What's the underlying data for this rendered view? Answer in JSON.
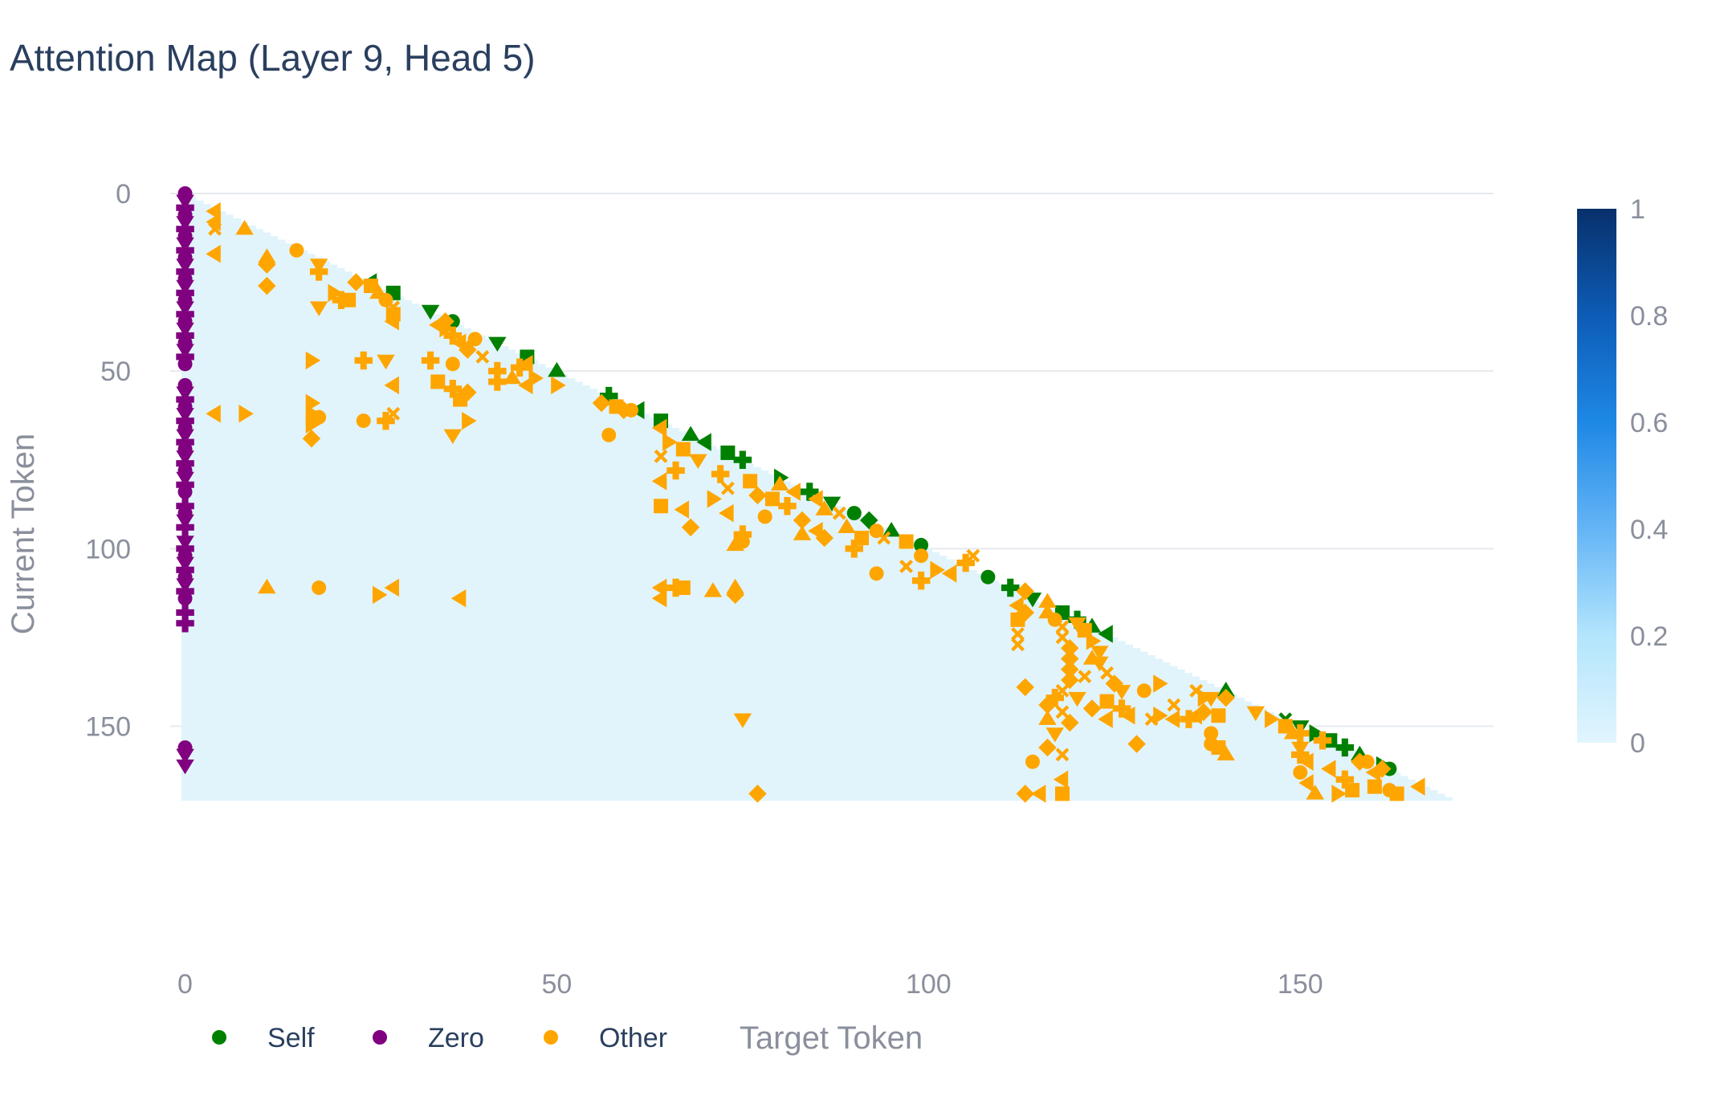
{
  "chart_data": {
    "type": "heatmap",
    "title": "Attention Map (Layer 9, Head 5)",
    "xlabel": "Target Token",
    "ylabel": "Current Token",
    "n_tokens": 171,
    "xlim": [
      -2,
      176
    ],
    "ylim": [
      0,
      170
    ],
    "x_ticks": [
      0,
      50,
      100,
      150
    ],
    "y_ticks": [
      0,
      50,
      100,
      150
    ],
    "grid": true,
    "colorscale": {
      "min": 0,
      "max": 1,
      "ticks": [
        "1",
        "0.8",
        "0.6",
        "0.4",
        "0.2",
        "0"
      ],
      "colors": [
        "#e1f5fe",
        "#b3e5fc",
        "#64b5f6",
        "#1e88e5",
        "#0d5cb6",
        "#08306b"
      ]
    },
    "legend": {
      "placement": "bottom-left",
      "entries": [
        {
          "name": "Self",
          "color": "#008000"
        },
        {
          "name": "Zero",
          "color": "#800080"
        },
        {
          "name": "Other",
          "color": "#ffa500"
        }
      ]
    },
    "series": [
      {
        "name": "Zero",
        "color": "#800080",
        "points": [
          [
            0,
            0
          ],
          [
            0,
            2
          ],
          [
            0,
            4
          ],
          [
            0,
            6
          ],
          [
            0,
            8
          ],
          [
            0,
            10
          ],
          [
            0,
            12
          ],
          [
            0,
            14
          ],
          [
            0,
            16
          ],
          [
            0,
            18
          ],
          [
            0,
            20
          ],
          [
            0,
            22
          ],
          [
            0,
            24
          ],
          [
            0,
            26
          ],
          [
            0,
            28
          ],
          [
            0,
            30
          ],
          [
            0,
            32
          ],
          [
            0,
            34
          ],
          [
            0,
            36
          ],
          [
            0,
            38
          ],
          [
            0,
            40
          ],
          [
            0,
            42
          ],
          [
            0,
            44
          ],
          [
            0,
            46
          ],
          [
            0,
            48
          ],
          [
            0,
            54
          ],
          [
            0,
            56
          ],
          [
            0,
            58
          ],
          [
            0,
            60
          ],
          [
            0,
            62
          ],
          [
            0,
            64
          ],
          [
            0,
            66
          ],
          [
            0,
            68
          ],
          [
            0,
            70
          ],
          [
            0,
            72
          ],
          [
            0,
            74
          ],
          [
            0,
            76
          ],
          [
            0,
            78
          ],
          [
            0,
            80
          ],
          [
            0,
            82
          ],
          [
            0,
            84
          ],
          [
            0,
            88
          ],
          [
            0,
            90
          ],
          [
            0,
            92
          ],
          [
            0,
            94
          ],
          [
            0,
            98
          ],
          [
            0,
            100
          ],
          [
            0,
            102
          ],
          [
            0,
            104
          ],
          [
            0,
            106
          ],
          [
            0,
            108
          ],
          [
            0,
            110
          ],
          [
            0,
            112
          ],
          [
            0,
            114
          ],
          [
            0,
            118
          ],
          [
            0,
            121
          ],
          [
            0,
            156
          ],
          [
            0,
            158
          ],
          [
            0,
            161
          ]
        ]
      },
      {
        "name": "Self",
        "color": "#008000",
        "points": [
          [
            25,
            25
          ],
          [
            28,
            28
          ],
          [
            33,
            33
          ],
          [
            36,
            36
          ],
          [
            42,
            42
          ],
          [
            46,
            46
          ],
          [
            50,
            50
          ],
          [
            57,
            57
          ],
          [
            61,
            61
          ],
          [
            64,
            64
          ],
          [
            68,
            68
          ],
          [
            70,
            70
          ],
          [
            73,
            73
          ],
          [
            75,
            75
          ],
          [
            80,
            80
          ],
          [
            84,
            84
          ],
          [
            87,
            87
          ],
          [
            90,
            90
          ],
          [
            92,
            92
          ],
          [
            95,
            95
          ],
          [
            99,
            99
          ],
          [
            108,
            108
          ],
          [
            111,
            111
          ],
          [
            114,
            114
          ],
          [
            118,
            118
          ],
          [
            120,
            120
          ],
          [
            122,
            122
          ],
          [
            124,
            124
          ],
          [
            140,
            140
          ],
          [
            148,
            148
          ],
          [
            150,
            150
          ],
          [
            152,
            152
          ],
          [
            154,
            154
          ],
          [
            156,
            156
          ],
          [
            158,
            158
          ],
          [
            161,
            161
          ],
          [
            162,
            162
          ]
        ]
      },
      {
        "name": "Other",
        "color": "#ffa500",
        "points": [
          [
            4,
            5
          ],
          [
            4,
            8
          ],
          [
            4,
            10
          ],
          [
            4,
            17
          ],
          [
            8,
            10
          ],
          [
            11,
            18
          ],
          [
            11,
            20
          ],
          [
            11,
            26
          ],
          [
            15,
            16
          ],
          [
            18,
            20
          ],
          [
            18,
            22
          ],
          [
            18,
            32
          ],
          [
            20,
            28
          ],
          [
            21,
            30
          ],
          [
            23,
            25
          ],
          [
            22,
            30
          ],
          [
            25,
            26
          ],
          [
            26,
            28
          ],
          [
            27,
            30
          ],
          [
            28,
            32
          ],
          [
            28,
            34
          ],
          [
            28,
            36
          ],
          [
            34,
            37
          ],
          [
            35,
            38
          ],
          [
            36,
            40
          ],
          [
            37,
            42
          ],
          [
            38,
            44
          ],
          [
            40,
            46
          ],
          [
            42,
            50
          ],
          [
            44,
            52
          ],
          [
            46,
            48
          ],
          [
            46,
            54
          ],
          [
            50,
            54
          ],
          [
            36,
            48
          ],
          [
            36,
            55
          ],
          [
            38,
            56
          ],
          [
            37,
            58
          ],
          [
            38,
            64
          ],
          [
            36,
            68
          ],
          [
            34,
            53
          ],
          [
            33,
            47
          ],
          [
            17,
            47
          ],
          [
            24,
            47
          ],
          [
            27,
            47
          ],
          [
            28,
            54
          ],
          [
            17,
            59
          ],
          [
            17,
            62
          ],
          [
            17,
            65
          ],
          [
            17,
            69
          ],
          [
            18,
            63
          ],
          [
            4,
            62
          ],
          [
            8,
            62
          ],
          [
            24,
            64
          ],
          [
            27,
            64
          ],
          [
            28,
            62
          ],
          [
            35,
            36
          ],
          [
            39,
            41
          ],
          [
            42,
            53
          ],
          [
            45,
            49
          ],
          [
            47,
            52
          ],
          [
            56,
            59
          ],
          [
            58,
            60
          ],
          [
            59,
            61
          ],
          [
            57,
            68
          ],
          [
            64,
            66
          ],
          [
            65,
            70
          ],
          [
            64,
            74
          ],
          [
            66,
            78
          ],
          [
            67,
            72
          ],
          [
            69,
            75
          ],
          [
            72,
            79
          ],
          [
            71,
            86
          ],
          [
            73,
            83
          ],
          [
            73,
            90
          ],
          [
            76,
            81
          ],
          [
            77,
            85
          ],
          [
            79,
            86
          ],
          [
            78,
            91
          ],
          [
            81,
            88
          ],
          [
            83,
            92
          ],
          [
            86,
            89
          ],
          [
            85,
            95
          ],
          [
            89,
            94
          ],
          [
            90,
            100
          ],
          [
            91,
            97
          ],
          [
            93,
            95
          ],
          [
            93,
            107
          ],
          [
            97,
            105
          ],
          [
            99,
            102
          ],
          [
            99,
            109
          ],
          [
            101,
            106
          ],
          [
            105,
            104
          ],
          [
            106,
            102
          ],
          [
            67,
            89
          ],
          [
            68,
            94
          ],
          [
            64,
            88
          ],
          [
            64,
            81
          ],
          [
            75,
            96
          ],
          [
            75,
            98
          ],
          [
            74,
            99
          ],
          [
            86,
            97
          ],
          [
            83,
            96
          ],
          [
            80,
            82
          ],
          [
            82,
            84
          ],
          [
            85,
            86
          ],
          [
            88,
            90
          ],
          [
            94,
            97
          ],
          [
            97,
            98
          ],
          [
            103,
            107
          ],
          [
            67,
            111
          ],
          [
            66,
            111
          ],
          [
            71,
            112
          ],
          [
            74,
            113
          ],
          [
            74,
            111
          ],
          [
            64,
            111
          ],
          [
            37,
            114
          ],
          [
            11,
            111
          ],
          [
            18,
            111
          ],
          [
            26,
            113
          ],
          [
            28,
            111
          ],
          [
            113,
            112
          ],
          [
            112,
            116
          ],
          [
            113,
            118
          ],
          [
            112,
            120
          ],
          [
            112,
            124
          ],
          [
            112,
            127
          ],
          [
            116,
            115
          ],
          [
            116,
            118
          ],
          [
            117,
            120
          ],
          [
            118,
            122
          ],
          [
            118,
            125
          ],
          [
            119,
            128
          ],
          [
            119,
            131
          ],
          [
            119,
            134
          ],
          [
            119,
            137
          ],
          [
            118,
            140
          ],
          [
            117,
            142
          ],
          [
            116,
            144
          ],
          [
            118,
            146
          ],
          [
            119,
            149
          ],
          [
            117,
            152
          ],
          [
            116,
            156
          ],
          [
            113,
            139
          ],
          [
            116,
            148
          ],
          [
            120,
            121
          ],
          [
            121,
            123
          ],
          [
            122,
            126
          ],
          [
            123,
            129
          ],
          [
            123,
            132
          ],
          [
            121,
            136
          ],
          [
            124,
            135
          ],
          [
            125,
            138
          ],
          [
            126,
            140
          ],
          [
            126,
            145
          ],
          [
            122,
            145
          ],
          [
            120,
            142
          ],
          [
            122,
            131
          ],
          [
            124,
            143
          ],
          [
            127,
            147
          ],
          [
            129,
            140
          ],
          [
            131,
            147
          ],
          [
            133,
            148
          ],
          [
            133,
            144
          ],
          [
            131,
            138
          ],
          [
            136,
            140
          ],
          [
            137,
            142
          ],
          [
            137,
            146
          ],
          [
            135,
            148
          ],
          [
            130,
            148
          ],
          [
            138,
            152
          ],
          [
            139,
            156
          ],
          [
            139,
            147
          ],
          [
            140,
            142
          ],
          [
            136,
            147
          ],
          [
            138,
            142
          ],
          [
            144,
            146
          ],
          [
            146,
            148
          ],
          [
            148,
            150
          ],
          [
            150,
            152
          ],
          [
            150,
            158
          ],
          [
            151,
            160
          ],
          [
            150,
            163
          ],
          [
            151,
            166
          ],
          [
            152,
            169
          ],
          [
            155,
            169
          ],
          [
            154,
            162
          ],
          [
            156,
            165
          ],
          [
            157,
            168
          ],
          [
            160,
            167
          ],
          [
            161,
            162
          ],
          [
            159,
            160
          ],
          [
            162,
            168
          ],
          [
            163,
            169
          ],
          [
            166,
            167
          ],
          [
            150,
            156
          ],
          [
            149,
            152
          ],
          [
            153,
            154
          ],
          [
            158,
            160
          ],
          [
            160,
            163
          ],
          [
            113,
            169
          ],
          [
            115,
            169
          ],
          [
            118,
            165
          ],
          [
            118,
            169
          ],
          [
            114,
            160
          ],
          [
            118,
            158
          ],
          [
            124,
            148
          ],
          [
            128,
            155
          ],
          [
            140,
            158
          ],
          [
            138,
            155
          ],
          [
            75,
            148
          ],
          [
            77,
            169
          ],
          [
            64,
            114
          ],
          [
            60,
            61
          ]
        ]
      }
    ]
  }
}
